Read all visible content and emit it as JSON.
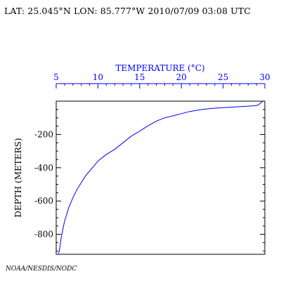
{
  "header": {
    "text": "LAT: 25.045°N LON: 85.777°W 2010/07/09 03:08 UTC"
  },
  "credit": "NOAA/NESDIS/NODC",
  "colors": {
    "profile": "#0000ff",
    "top_axis": "#0000ff",
    "frame": "#000000"
  },
  "chart_data": {
    "type": "line",
    "xlabel": "TEMPERATURE (°C)",
    "ylabel": "DEPTH (METERS)",
    "xlim": [
      5,
      30
    ],
    "ylim": [
      -920,
      0
    ],
    "x_ticks": [
      "5",
      "10",
      "15",
      "20",
      "25",
      "30"
    ],
    "y_ticks": [
      "-200",
      "-400",
      "-600",
      "-800"
    ],
    "x_axis_position": "top",
    "grid": false,
    "series": [
      {
        "points": [
          [
            29.8,
            0
          ],
          [
            29.5,
            -10
          ],
          [
            29.3,
            -20
          ],
          [
            29.0,
            -26
          ],
          [
            28.0,
            -30
          ],
          [
            26.0,
            -36
          ],
          [
            24.0,
            -42
          ],
          [
            22.5,
            -50
          ],
          [
            21.0,
            -62
          ],
          [
            20.0,
            -75
          ],
          [
            19.0,
            -88
          ],
          [
            18.0,
            -100
          ],
          [
            17.0,
            -120
          ],
          [
            16.0,
            -148
          ],
          [
            15.0,
            -180
          ],
          [
            14.0,
            -210
          ],
          [
            13.0,
            -250
          ],
          [
            12.0,
            -290
          ],
          [
            11.0,
            -320
          ],
          [
            10.0,
            -360
          ],
          [
            9.5,
            -390
          ],
          [
            9.0,
            -420
          ],
          [
            8.5,
            -450
          ],
          [
            8.0,
            -490
          ],
          [
            7.5,
            -530
          ],
          [
            7.0,
            -580
          ],
          [
            6.5,
            -640
          ],
          [
            6.2,
            -690
          ],
          [
            6.0,
            -720
          ],
          [
            5.8,
            -770
          ],
          [
            5.6,
            -820
          ],
          [
            5.5,
            -860
          ],
          [
            5.4,
            -890
          ],
          [
            5.3,
            -915
          ]
        ]
      }
    ]
  }
}
